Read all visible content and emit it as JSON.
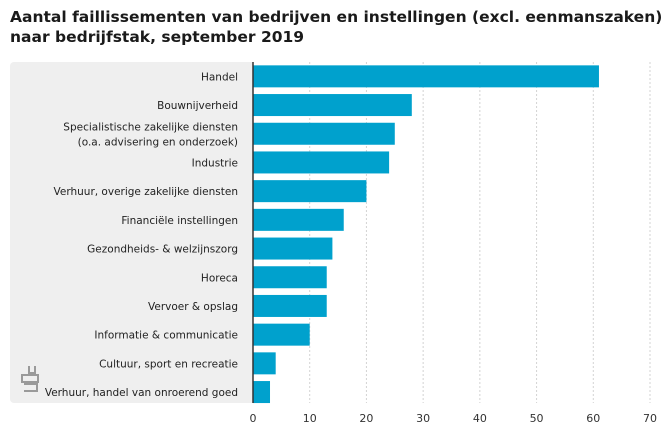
{
  "title": {
    "line1": "Aantal faillissementen van bedrijven en instellingen (excl. eenmanszaken)",
    "line2": "naar bedrijfstak, september 2019"
  },
  "logo_label": "cbs",
  "chart_data": {
    "type": "bar",
    "orientation": "horizontal",
    "title": "Aantal faillissementen van bedrijven en instellingen (excl. eenmanszaken) naar bedrijfstak, september 2019",
    "categories": [
      [
        "Handel"
      ],
      [
        "Bouwnijverheid"
      ],
      [
        "Specialistische zakelijke diensten",
        "(o.a. advisering en onderzoek)"
      ],
      [
        "Industrie"
      ],
      [
        "Verhuur, overige zakelijke diensten"
      ],
      [
        "Financiële instellingen"
      ],
      [
        "Gezondheids- & welzijnszorg"
      ],
      [
        "Horeca"
      ],
      [
        "Vervoer & opslag"
      ],
      [
        "Informatie & communicatie"
      ],
      [
        "Cultuur, sport en recreatie"
      ],
      [
        "Verhuur, handel van onroerend goed"
      ]
    ],
    "values": [
      61,
      28,
      25,
      24,
      20,
      16,
      14,
      13,
      13,
      10,
      4,
      3
    ],
    "xlim": [
      0,
      70
    ],
    "xticks": [
      0,
      10,
      20,
      30,
      40,
      50,
      60,
      70
    ],
    "xlabel": "",
    "ylabel": "",
    "bar_color": "#00a1cd",
    "grid_color": "#d3d3d3"
  }
}
